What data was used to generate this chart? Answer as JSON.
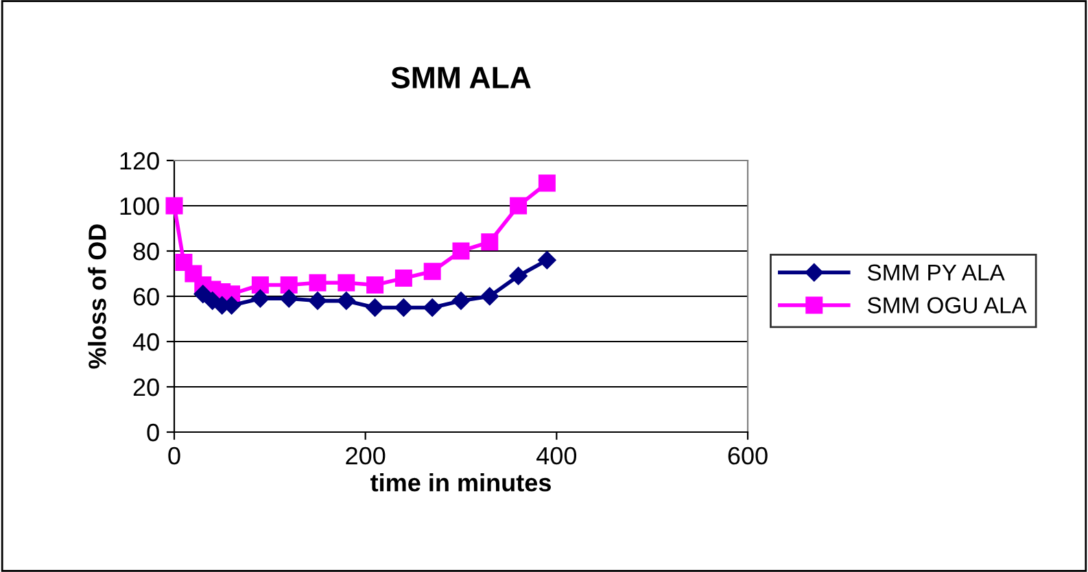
{
  "chart_data": {
    "type": "line",
    "title": "SMM ALA",
    "xlabel": "time in minutes",
    "ylabel": "%loss of OD",
    "x": [
      0,
      10,
      20,
      30,
      40,
      50,
      60,
      90,
      120,
      150,
      180,
      210,
      240,
      270,
      300,
      330,
      360,
      390
    ],
    "series": [
      {
        "name": "SMM PY ALA",
        "color": "#000080",
        "marker": "diamond",
        "values": [
          null,
          null,
          null,
          61,
          58,
          56,
          56,
          59,
          59,
          58,
          58,
          55,
          55,
          55,
          58,
          60,
          69,
          76
        ]
      },
      {
        "name": "SMM OGU ALA",
        "color": "#ff00ff",
        "marker": "square",
        "values": [
          100,
          75,
          70,
          65,
          63,
          62,
          61,
          65,
          65,
          66,
          66,
          65,
          68,
          71,
          80,
          84,
          100,
          110
        ]
      }
    ],
    "xlim": [
      0,
      600
    ],
    "xticks": [
      0,
      200,
      400,
      600
    ],
    "ylim": [
      0,
      120
    ],
    "yticks": [
      0,
      20,
      40,
      60,
      80,
      100,
      120
    ],
    "grid": "y",
    "legend": "right",
    "line_style": "solid"
  }
}
